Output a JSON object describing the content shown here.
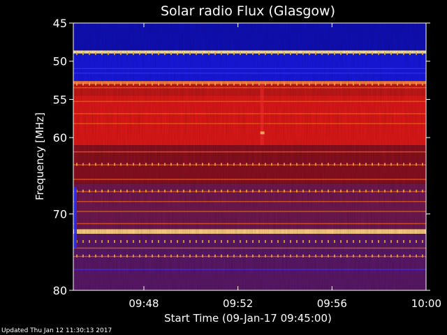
{
  "chart_data": {
    "type": "heatmap",
    "title": "Solar radio Flux (Glasgow)",
    "xlabel": "Start Time (09-Jan-17 09:45:00)",
    "ylabel": "Frequency [MHz]",
    "x_ticks": [
      "09:48",
      "09:52",
      "09:56",
      "10:00"
    ],
    "x_tick_values": [
      "09:48",
      "09:52",
      "09:56",
      "10:00"
    ],
    "xlim": [
      "09:45",
      "10:00"
    ],
    "y_ticks": [
      "45",
      "50",
      "55",
      "60",
      "70",
      "80"
    ],
    "y_tick_values": [
      45,
      50,
      55,
      60,
      70,
      80
    ],
    "ylim": [
      45,
      80
    ],
    "y_inverted": true,
    "grid": false,
    "colormap": [
      "#1010a0",
      "#1a1aff",
      "#5a1a9a",
      "#a01010",
      "#ff2020",
      "#ffa000",
      "#ffffc0"
    ],
    "bands": [
      {
        "from": 45.0,
        "to": 48.6,
        "level": "low",
        "color": "#1010b8"
      },
      {
        "from": 48.6,
        "to": 49.0,
        "level": "peak",
        "color": "#ffe8a0"
      },
      {
        "from": 49.0,
        "to": 52.6,
        "level": "low",
        "color": "#1818e0"
      },
      {
        "from": 52.6,
        "to": 53.0,
        "level": "high",
        "color": "#ff8040"
      },
      {
        "from": 53.0,
        "to": 54.5,
        "level": "mid-high",
        "color": "#c41818"
      },
      {
        "from": 54.5,
        "to": 61.0,
        "level": "high",
        "color": "#e01818"
      },
      {
        "from": 61.0,
        "to": 66.0,
        "level": "mid",
        "color": "#8a1020"
      },
      {
        "from": 66.0,
        "to": 72.0,
        "level": "mid-low",
        "color": "#701850"
      },
      {
        "from": 72.0,
        "to": 72.6,
        "level": "peak",
        "color": "#ffd080"
      },
      {
        "from": 72.6,
        "to": 80.0,
        "level": "low-mid",
        "color": "#5a1868"
      }
    ],
    "footer": "Updated Thu Jan 12 11:30:13 2017"
  },
  "colors": {
    "background": "#000000",
    "text": "#ffffff"
  }
}
